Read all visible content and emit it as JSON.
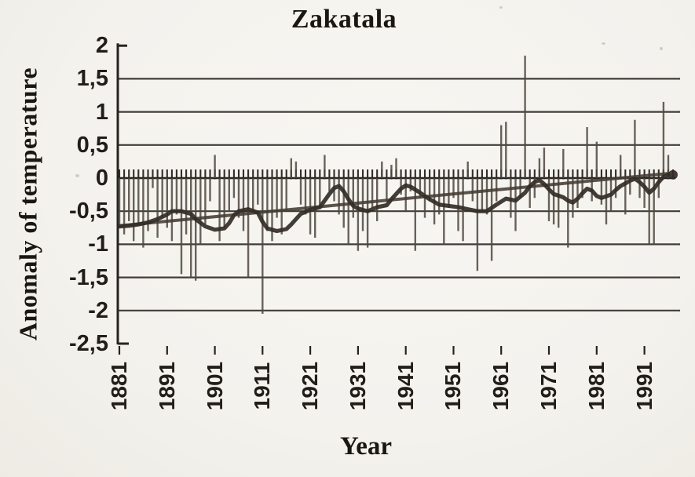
{
  "colors": {
    "paper": "#f6f4ef",
    "ink": "#272320",
    "grid": "#2e2a25",
    "bar": "#4f4840",
    "moving_average": "#332d27",
    "trend": "#453d35",
    "text": "#1a1712"
  },
  "chart_data": {
    "type": "bar",
    "title": "Zakatala",
    "xlabel": "Year",
    "ylabel": "Anomaly of temperature",
    "ylim": [
      -2.5,
      2
    ],
    "xlim": [
      1881,
      1997
    ],
    "grid": "horizontal",
    "legend_position": "none",
    "y_ticks": [
      2,
      1.5,
      1,
      0.5,
      0,
      -0.5,
      -1,
      -1.5,
      -2,
      -2.5
    ],
    "y_tick_labels": [
      "2",
      "1,5",
      "1",
      "0,5",
      "0",
      "-0,5",
      "-1",
      "-1,5",
      "-2",
      "-2,5"
    ],
    "gridline_values": [
      1.5,
      1,
      0.5,
      -0.5,
      -1,
      -1.5,
      -2
    ],
    "x_ticks": [
      1881,
      1891,
      1901,
      1911,
      1921,
      1931,
      1941,
      1951,
      1961,
      1971,
      1981,
      1991
    ],
    "x_tick_labels": [
      "1881",
      "1891",
      "1901",
      "1911",
      "1921",
      "1931",
      "1941",
      "1951",
      "1961",
      "1971",
      "1981",
      "1991"
    ],
    "series": [
      {
        "name": "annual-temperature-anomaly",
        "type": "bar",
        "start_year": 1881,
        "end_year": 1996,
        "values": [
          -0.75,
          -0.85,
          -0.65,
          -0.95,
          -0.7,
          -1.05,
          -0.8,
          -0.15,
          -0.9,
          -0.6,
          -0.75,
          -0.95,
          -0.55,
          -1.45,
          -0.85,
          -1.5,
          -1.55,
          -1.0,
          -0.7,
          -0.35,
          0.35,
          -0.95,
          -0.75,
          -0.5,
          -0.3,
          -0.6,
          -0.8,
          -1.5,
          -0.5,
          -0.4,
          -2.05,
          -0.8,
          -0.95,
          -0.6,
          -0.85,
          -0.5,
          0.3,
          0.25,
          -0.4,
          -0.55,
          -0.85,
          -0.9,
          -0.45,
          0.35,
          -0.2,
          -0.35,
          -0.55,
          -0.75,
          -1.0,
          -0.6,
          -1.1,
          -0.8,
          -1.05,
          -0.45,
          -0.65,
          0.25,
          -0.35,
          0.2,
          0.3,
          -0.25,
          -0.5,
          -0.2,
          -1.1,
          -0.3,
          -0.6,
          -0.35,
          -0.7,
          -0.55,
          -1.0,
          -0.45,
          -0.3,
          -0.8,
          -0.95,
          0.25,
          -0.35,
          -1.4,
          -0.5,
          -0.55,
          -1.25,
          -0.35,
          0.8,
          0.85,
          -0.6,
          -0.8,
          -0.3,
          1.85,
          -0.45,
          -0.3,
          0.3,
          0.46,
          -0.65,
          -0.7,
          -0.75,
          0.44,
          -1.05,
          -0.6,
          -0.45,
          -0.3,
          0.77,
          -0.35,
          0.55,
          -0.4,
          -0.7,
          -0.5,
          -0.3,
          0.35,
          -0.55,
          -0.25,
          0.88,
          -0.3,
          -0.45,
          -1.0,
          -1.0,
          -0.3,
          1.15,
          0.35
        ]
      },
      {
        "name": "smoothed-moving-average",
        "type": "line",
        "points": [
          [
            1881,
            -0.73
          ],
          [
            1883,
            -0.72
          ],
          [
            1885,
            -0.7
          ],
          [
            1887,
            -0.67
          ],
          [
            1889,
            -0.62
          ],
          [
            1891,
            -0.55
          ],
          [
            1892,
            -0.5
          ],
          [
            1894,
            -0.5
          ],
          [
            1896,
            -0.54
          ],
          [
            1897,
            -0.62
          ],
          [
            1899,
            -0.73
          ],
          [
            1901,
            -0.78
          ],
          [
            1903,
            -0.76
          ],
          [
            1904,
            -0.68
          ],
          [
            1905,
            -0.56
          ],
          [
            1906,
            -0.5
          ],
          [
            1908,
            -0.47
          ],
          [
            1910,
            -0.52
          ],
          [
            1911,
            -0.66
          ],
          [
            1912,
            -0.76
          ],
          [
            1914,
            -0.8
          ],
          [
            1916,
            -0.77
          ],
          [
            1917,
            -0.7
          ],
          [
            1918,
            -0.62
          ],
          [
            1919,
            -0.54
          ],
          [
            1921,
            -0.48
          ],
          [
            1923,
            -0.44
          ],
          [
            1924,
            -0.34
          ],
          [
            1925,
            -0.24
          ],
          [
            1926,
            -0.15
          ],
          [
            1927,
            -0.12
          ],
          [
            1928,
            -0.2
          ],
          [
            1929,
            -0.32
          ],
          [
            1930,
            -0.42
          ],
          [
            1931,
            -0.46
          ],
          [
            1933,
            -0.5
          ],
          [
            1935,
            -0.44
          ],
          [
            1937,
            -0.41
          ],
          [
            1938,
            -0.32
          ],
          [
            1939,
            -0.24
          ],
          [
            1940,
            -0.16
          ],
          [
            1941,
            -0.11
          ],
          [
            1942,
            -0.13
          ],
          [
            1944,
            -0.22
          ],
          [
            1946,
            -0.32
          ],
          [
            1948,
            -0.4
          ],
          [
            1950,
            -0.42
          ],
          [
            1952,
            -0.44
          ],
          [
            1954,
            -0.47
          ],
          [
            1956,
            -0.5
          ],
          [
            1958,
            -0.5
          ],
          [
            1959,
            -0.45
          ],
          [
            1960,
            -0.4
          ],
          [
            1962,
            -0.31
          ],
          [
            1964,
            -0.34
          ],
          [
            1966,
            -0.22
          ],
          [
            1967,
            -0.12
          ],
          [
            1968,
            -0.06
          ],
          [
            1969,
            -0.03
          ],
          [
            1970,
            -0.09
          ],
          [
            1971,
            -0.17
          ],
          [
            1972,
            -0.24
          ],
          [
            1974,
            -0.29
          ],
          [
            1975,
            -0.34
          ],
          [
            1976,
            -0.37
          ],
          [
            1977,
            -0.31
          ],
          [
            1978,
            -0.23
          ],
          [
            1979,
            -0.16
          ],
          [
            1980,
            -0.19
          ],
          [
            1981,
            -0.27
          ],
          [
            1982,
            -0.3
          ],
          [
            1984,
            -0.25
          ],
          [
            1985,
            -0.18
          ],
          [
            1986,
            -0.12
          ],
          [
            1987,
            -0.08
          ],
          [
            1988,
            -0.04
          ],
          [
            1989,
            -0.01
          ],
          [
            1990,
            -0.06
          ],
          [
            1991,
            -0.13
          ],
          [
            1992,
            -0.22
          ],
          [
            1993,
            -0.16
          ],
          [
            1994,
            -0.06
          ],
          [
            1995,
            0.02
          ],
          [
            1996,
            0.05
          ]
        ]
      },
      {
        "name": "linear-trend",
        "type": "line",
        "points": [
          [
            1881,
            -0.72
          ],
          [
            1996,
            0.07
          ]
        ]
      }
    ]
  }
}
